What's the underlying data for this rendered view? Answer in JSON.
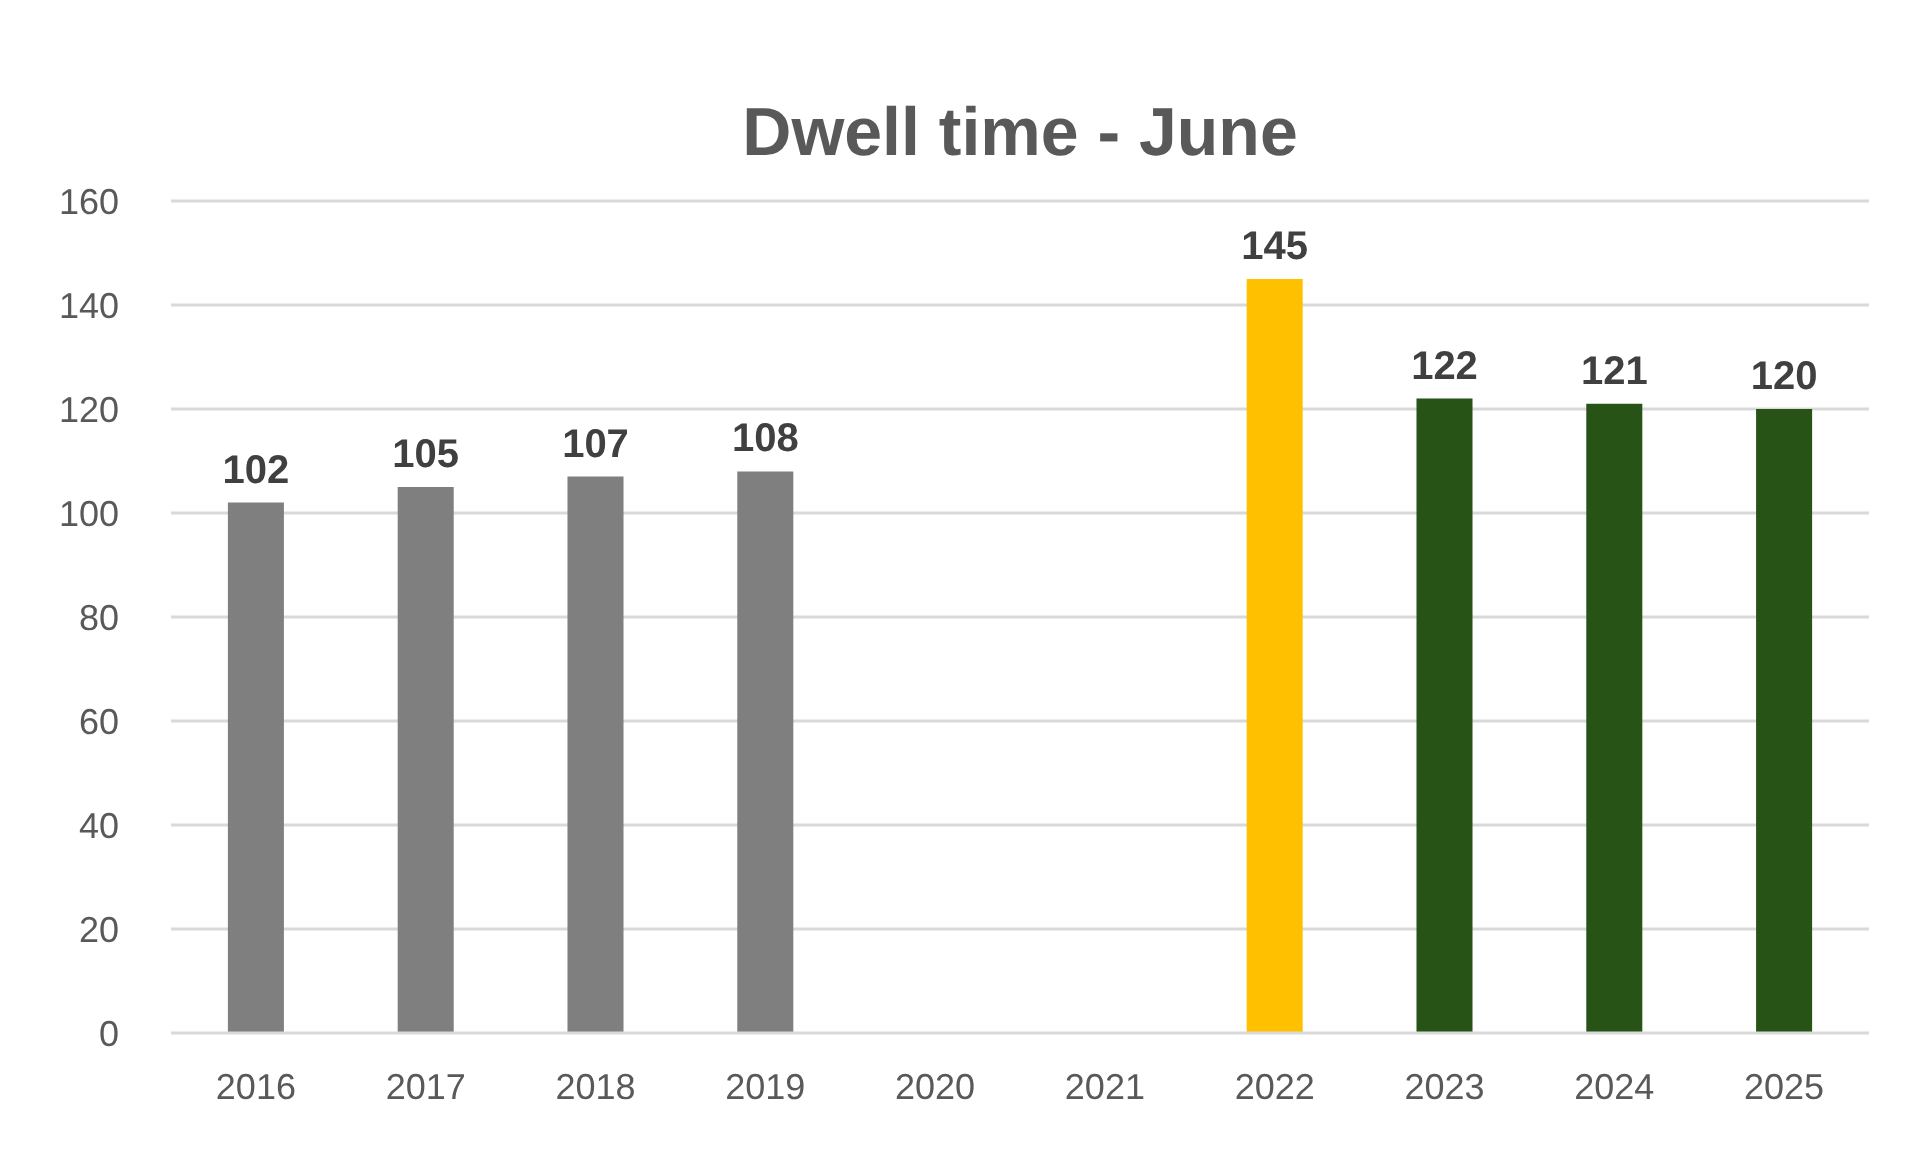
{
  "chart_data": {
    "type": "bar",
    "title": "Dwell time - June",
    "categories": [
      "2016",
      "2017",
      "2018",
      "2019",
      "2020",
      "2021",
      "2022",
      "2023",
      "2024",
      "2025"
    ],
    "values": [
      102,
      105,
      107,
      108,
      null,
      null,
      145,
      122,
      121,
      120
    ],
    "colors": [
      "#7f7f7f",
      "#7f7f7f",
      "#7f7f7f",
      "#7f7f7f",
      null,
      null,
      "#ffc000",
      "#275317",
      "#275317",
      "#275317"
    ],
    "ylim": [
      0,
      160
    ],
    "yticks": [
      0,
      20,
      40,
      60,
      80,
      100,
      120,
      140,
      160
    ],
    "grid": "y",
    "data_labels": true
  }
}
